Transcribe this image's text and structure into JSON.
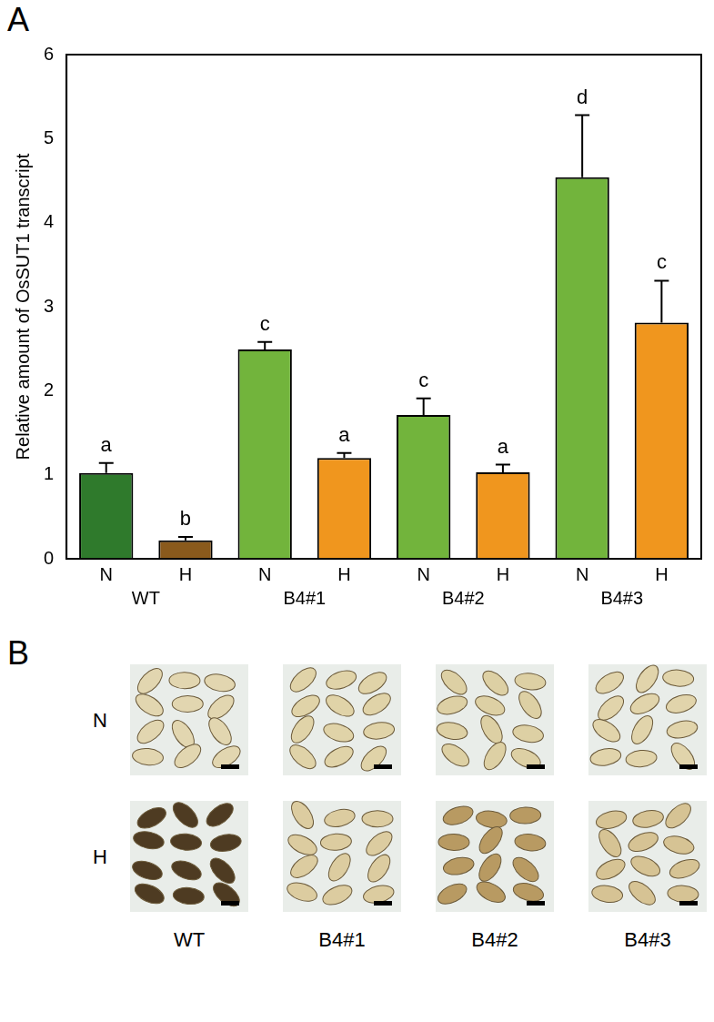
{
  "panel_letters": [
    "A",
    "B"
  ],
  "chart_data": {
    "type": "bar",
    "y_label": "Relative amount of OsSUT1 transcript",
    "categories": [
      "N",
      "H",
      "N",
      "H",
      "N",
      "H",
      "N",
      "H"
    ],
    "groups": [
      "WT",
      "B4#1",
      "B4#2",
      "B4#3"
    ],
    "values": [
      1.02,
      0.22,
      2.49,
      1.2,
      1.71,
      1.03,
      4.54,
      2.81
    ],
    "errors": [
      0.12,
      0.04,
      0.09,
      0.06,
      0.2,
      0.09,
      0.74,
      0.5
    ],
    "annotations": [
      "a",
      "b",
      "c",
      "a",
      "c",
      "a",
      "d",
      "c"
    ],
    "colors": [
      "#2f7a2c",
      "#8a5a1c",
      "#72b43c",
      "#f0961e",
      "#72b43c",
      "#f0961e",
      "#72b43c",
      "#f0961e"
    ],
    "ylim": [
      0,
      6
    ],
    "yticks": [
      0,
      1,
      2,
      3,
      4,
      5,
      6
    ],
    "grid": false
  },
  "panel_b": {
    "rows": [
      "N",
      "H"
    ],
    "columns": [
      "WT",
      "B4#1",
      "B4#2",
      "B4#3"
    ]
  }
}
